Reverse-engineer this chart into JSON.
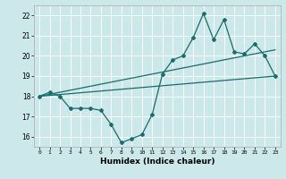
{
  "xlabel": "Humidex (Indice chaleur)",
  "bg_color": "#cce8eb",
  "line_color": "#1a6b6b",
  "xlim": [
    -0.5,
    23.5
  ],
  "ylim": [
    15.5,
    22.5
  ],
  "xticks": [
    0,
    1,
    2,
    3,
    4,
    5,
    6,
    7,
    8,
    9,
    10,
    11,
    12,
    13,
    14,
    15,
    16,
    17,
    18,
    19,
    20,
    21,
    22,
    23
  ],
  "yticks": [
    16,
    17,
    18,
    19,
    20,
    21,
    22
  ],
  "zigzag_x": [
    0,
    1,
    2,
    3,
    4,
    5,
    6,
    7,
    8,
    9,
    10,
    11,
    12,
    13,
    14,
    15,
    16,
    17,
    18,
    19,
    20,
    21,
    22,
    23
  ],
  "zigzag_y": [
    18.0,
    18.2,
    18.0,
    17.4,
    17.4,
    17.4,
    17.3,
    16.6,
    15.7,
    15.9,
    16.1,
    17.1,
    19.1,
    19.8,
    20.0,
    20.9,
    22.1,
    20.8,
    21.8,
    20.2,
    20.1,
    20.6,
    20.0,
    19.0
  ],
  "trend1_x": [
    0,
    23
  ],
  "trend1_y": [
    18.0,
    19.0
  ],
  "trend2_x": [
    0,
    23
  ],
  "trend2_y": [
    18.0,
    20.3
  ]
}
